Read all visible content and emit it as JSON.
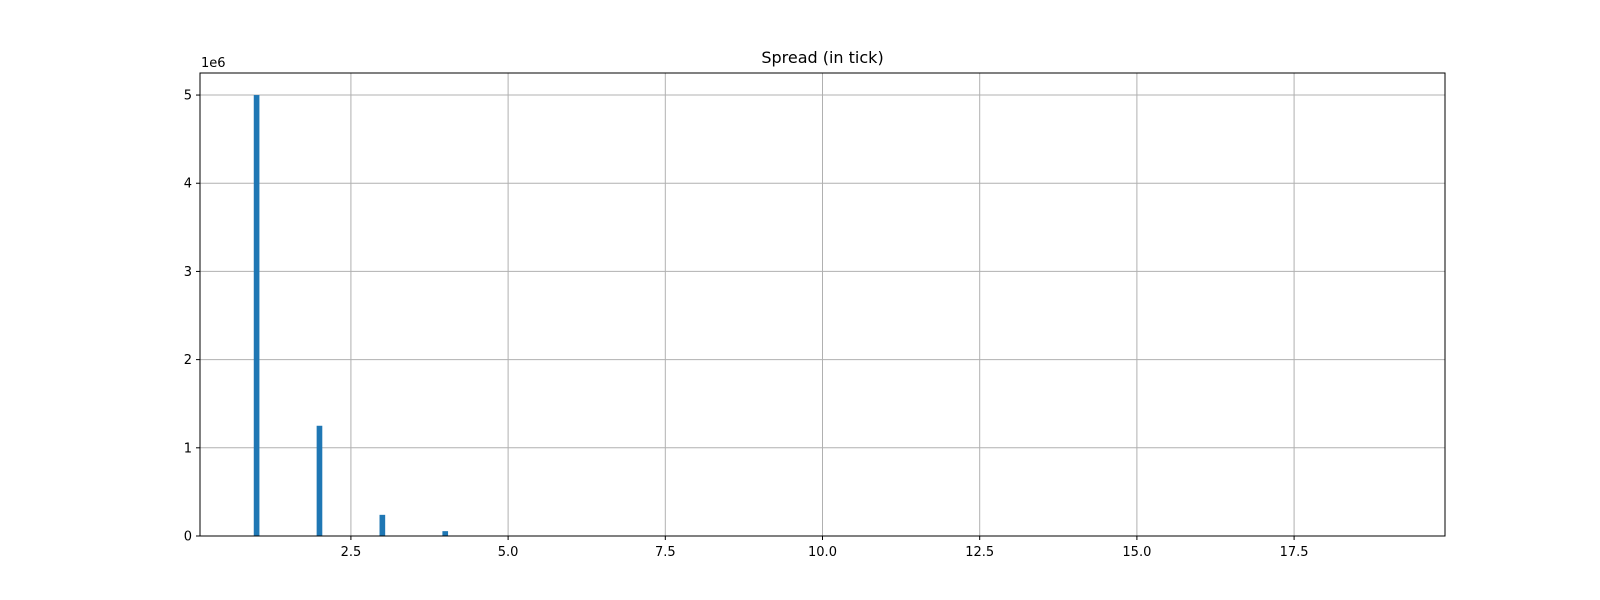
{
  "chart_data": {
    "type": "bar",
    "title": "Spread (in tick)",
    "xlabel": "",
    "ylabel": "",
    "y_offset_label": "1e6",
    "grid": true,
    "xlim": [
      0.1,
      19.9
    ],
    "ylim": [
      0,
      5250000
    ],
    "x_ticks": [
      2.5,
      5.0,
      7.5,
      10.0,
      12.5,
      15.0,
      17.5
    ],
    "x_tick_labels": [
      "2.5",
      "5.0",
      "7.5",
      "10.0",
      "12.5",
      "15.0",
      "17.5"
    ],
    "y_ticks": [
      0,
      1000000,
      2000000,
      3000000,
      4000000,
      5000000
    ],
    "y_tick_labels": [
      "0",
      "1",
      "2",
      "3",
      "4",
      "5"
    ],
    "bar_width": 0.09,
    "x": [
      1,
      2,
      3,
      4
    ],
    "values": [
      5000000,
      1250000,
      240000,
      55000
    ],
    "bar_color": "#1f77b4",
    "grid_color": "#b0b0b0"
  }
}
